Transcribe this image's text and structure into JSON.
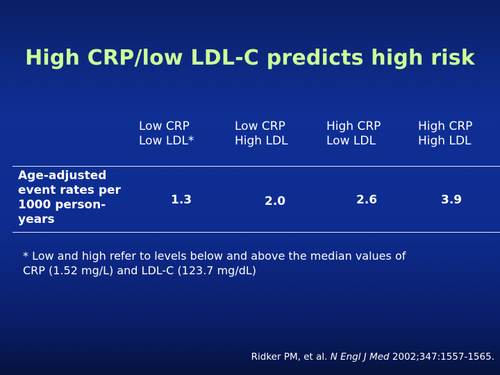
{
  "slide": {
    "title": "High CRP/low LDL-C predicts high risk"
  },
  "table": {
    "columns": [
      {
        "line1": "Low CRP",
        "line2": "Low LDL*"
      },
      {
        "line1": "Low CRP",
        "line2": "High LDL"
      },
      {
        "line1": "High CRP",
        "line2": "Low LDL"
      },
      {
        "line1": "High CRP",
        "line2": "High LDL"
      }
    ],
    "row_label": [
      "Age-adjusted",
      "event rates per",
      "1000 person-",
      "years"
    ],
    "values": [
      "1.3",
      "2.0",
      "2.6",
      "3.9"
    ]
  },
  "footnote": {
    "line1": "* Low and high refer to levels below and above the median values of",
    "line2": "CRP (1.52 mg/L) and LDL-C (123.7 mg/dL)"
  },
  "citation": {
    "authors": "Ridker PM, et al.",
    "journal": "N Engl J Med",
    "details": "2002;347:1557-1565."
  },
  "colors": {
    "title": "#ccff99",
    "text": "#ffffff",
    "background": "#0f2f95"
  }
}
